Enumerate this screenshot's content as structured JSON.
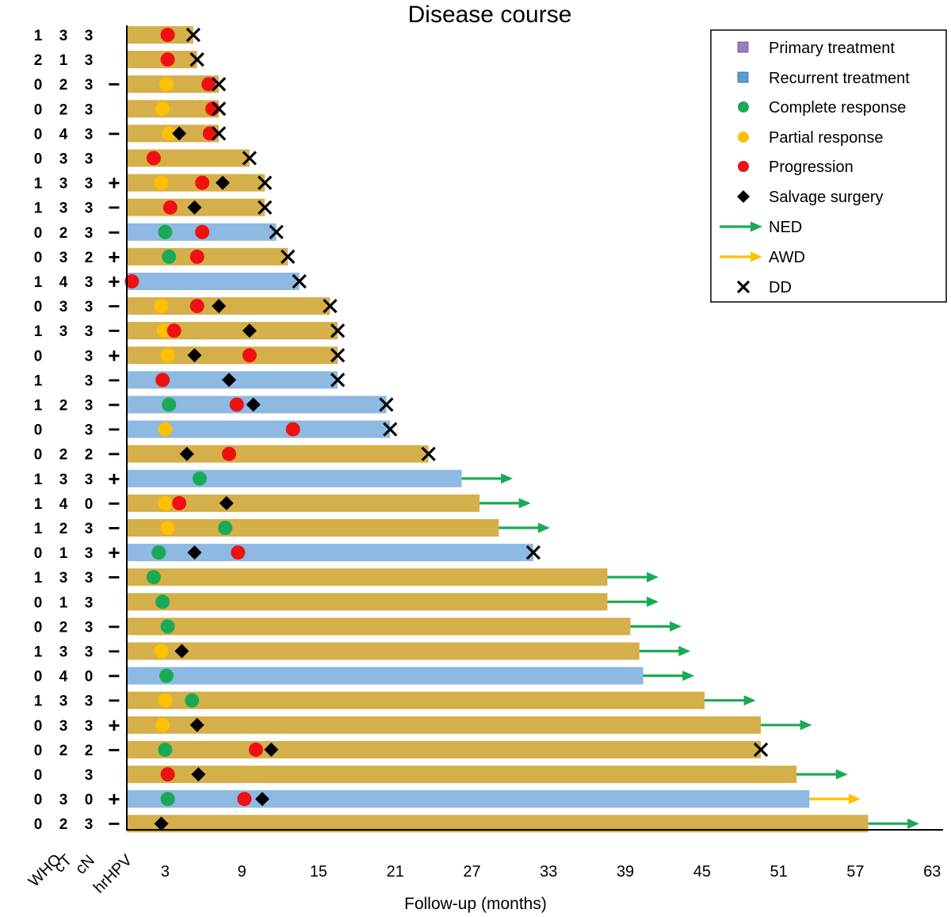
{
  "chart_data": {
    "type": "swimmer",
    "title": "Disease course",
    "xlabel": "Follow-up (months)",
    "xlim": [
      0,
      63
    ],
    "xticks": [
      3,
      9,
      15,
      21,
      27,
      33,
      39,
      45,
      51,
      57,
      63
    ],
    "column_headers": [
      "WHO",
      "cT",
      "cN",
      "hrHPV"
    ],
    "legend": {
      "primary": "Primary treatment",
      "recurrent": "Recurrent treatment",
      "cr": "Complete response",
      "pr": "Partial response",
      "prog": "Progression",
      "salvage": "Salvage surgery",
      "ned": "NED",
      "awd": "AWD",
      "dd": "DD"
    },
    "colors": {
      "primary_bar": "#d4af4a",
      "recurrent_bar": "#8db9e2",
      "legend_primary": "#9b7bc7",
      "legend_recurrent": "#5b9bd5",
      "cr": "#1aaa55",
      "pr": "#ffc000",
      "prog": "#ee1111",
      "salvage": "#000000",
      "ned": "#1aaa55",
      "awd": "#ffc000",
      "dd": "#000000"
    },
    "patients": [
      {
        "who": "1",
        "ct": "3",
        "cn": "3",
        "hpv": "",
        "tx": "primary",
        "end": 5.2,
        "events": [
          {
            "t": "prog",
            "m": 3.2
          }
        ],
        "outcome": "DD",
        "oend": 5.2
      },
      {
        "who": "2",
        "ct": "1",
        "cn": "3",
        "hpv": "",
        "tx": "primary",
        "end": 5.5,
        "events": [
          {
            "t": "prog",
            "m": 3.2
          }
        ],
        "outcome": "DD",
        "oend": 5.5
      },
      {
        "who": "0",
        "ct": "2",
        "cn": "3",
        "hpv": "−",
        "tx": "primary",
        "end": 7.2,
        "events": [
          {
            "t": "pr",
            "m": 3.1
          },
          {
            "t": "prog",
            "m": 6.4
          }
        ],
        "outcome": "DD",
        "oend": 7.2
      },
      {
        "who": "0",
        "ct": "2",
        "cn": "3",
        "hpv": "",
        "tx": "primary",
        "end": 7.2,
        "events": [
          {
            "t": "pr",
            "m": 2.8
          },
          {
            "t": "prog",
            "m": 6.7
          }
        ],
        "outcome": "DD",
        "oend": 7.2
      },
      {
        "who": "0",
        "ct": "4",
        "cn": "3",
        "hpv": "−",
        "tx": "primary",
        "end": 7.2,
        "events": [
          {
            "t": "pr",
            "m": 3.3
          },
          {
            "t": "salvage",
            "m": 4.1
          },
          {
            "t": "prog",
            "m": 6.5
          }
        ],
        "outcome": "DD",
        "oend": 7.2
      },
      {
        "who": "0",
        "ct": "3",
        "cn": "3",
        "hpv": "",
        "tx": "primary",
        "end": 9.6,
        "events": [
          {
            "t": "prog",
            "m": 2.1
          }
        ],
        "outcome": "DD",
        "oend": 9.6
      },
      {
        "who": "1",
        "ct": "3",
        "cn": "3",
        "hpv": "+",
        "tx": "primary",
        "end": 10.8,
        "events": [
          {
            "t": "pr",
            "m": 2.7
          },
          {
            "t": "prog",
            "m": 5.9
          },
          {
            "t": "salvage",
            "m": 7.5
          }
        ],
        "outcome": "DD",
        "oend": 10.8
      },
      {
        "who": "1",
        "ct": "3",
        "cn": "3",
        "hpv": "−",
        "tx": "primary",
        "end": 10.8,
        "events": [
          {
            "t": "prog",
            "m": 3.4
          },
          {
            "t": "salvage",
            "m": 5.3
          }
        ],
        "outcome": "DD",
        "oend": 10.8
      },
      {
        "who": "0",
        "ct": "2",
        "cn": "3",
        "hpv": "−",
        "tx": "recurrent",
        "end": 11.7,
        "events": [
          {
            "t": "cr",
            "m": 3.0
          },
          {
            "t": "prog",
            "m": 5.9
          }
        ],
        "outcome": "DD",
        "oend": 11.7
      },
      {
        "who": "0",
        "ct": "3",
        "cn": "2",
        "hpv": "+",
        "tx": "primary",
        "end": 12.6,
        "events": [
          {
            "t": "cr",
            "m": 3.3
          },
          {
            "t": "prog",
            "m": 5.5
          }
        ],
        "outcome": "DD",
        "oend": 12.6
      },
      {
        "who": "1",
        "ct": "4",
        "cn": "3",
        "hpv": "+",
        "tx": "recurrent",
        "end": 13.5,
        "events": [
          {
            "t": "prog",
            "m": 0.4
          }
        ],
        "outcome": "DD",
        "oend": 13.5
      },
      {
        "who": "0",
        "ct": "3",
        "cn": "3",
        "hpv": "−",
        "tx": "primary",
        "end": 15.9,
        "events": [
          {
            "t": "pr",
            "m": 2.7
          },
          {
            "t": "prog",
            "m": 5.5
          },
          {
            "t": "salvage",
            "m": 7.2
          }
        ],
        "outcome": "DD",
        "oend": 15.9
      },
      {
        "who": "1",
        "ct": "3",
        "cn": "3",
        "hpv": "−",
        "tx": "primary",
        "end": 16.5,
        "events": [
          {
            "t": "pr",
            "m": 2.9
          },
          {
            "t": "prog",
            "m": 3.7
          },
          {
            "t": "salvage",
            "m": 9.6
          }
        ],
        "outcome": "DD",
        "oend": 16.5
      },
      {
        "who": "0",
        "ct": "",
        "cn": "3",
        "hpv": "+",
        "tx": "primary",
        "end": 16.5,
        "events": [
          {
            "t": "pr",
            "m": 3.2
          },
          {
            "t": "salvage",
            "m": 5.3
          },
          {
            "t": "prog",
            "m": 9.6
          }
        ],
        "outcome": "DD",
        "oend": 16.5
      },
      {
        "who": "1",
        "ct": "",
        "cn": "3",
        "hpv": "−",
        "tx": "recurrent",
        "end": 16.5,
        "events": [
          {
            "t": "prog",
            "m": 2.8
          },
          {
            "t": "salvage",
            "m": 8.0
          }
        ],
        "outcome": "DD",
        "oend": 16.5
      },
      {
        "who": "1",
        "ct": "2",
        "cn": "3",
        "hpv": "−",
        "tx": "recurrent",
        "end": 20.3,
        "events": [
          {
            "t": "cr",
            "m": 3.3
          },
          {
            "t": "prog",
            "m": 8.6
          },
          {
            "t": "salvage",
            "m": 9.9
          }
        ],
        "outcome": "DD",
        "oend": 20.3
      },
      {
        "who": "0",
        "ct": "",
        "cn": "3",
        "hpv": "−",
        "tx": "recurrent",
        "end": 20.6,
        "events": [
          {
            "t": "pr",
            "m": 3.0
          },
          {
            "t": "prog",
            "m": 13.0
          }
        ],
        "outcome": "DD",
        "oend": 20.6
      },
      {
        "who": "0",
        "ct": "2",
        "cn": "2",
        "hpv": "−",
        "tx": "primary",
        "end": 23.6,
        "events": [
          {
            "t": "salvage",
            "m": 4.7
          },
          {
            "t": "prog",
            "m": 8.0
          }
        ],
        "outcome": "DD",
        "oend": 23.6
      },
      {
        "who": "1",
        "ct": "3",
        "cn": "3",
        "hpv": "+",
        "tx": "recurrent",
        "end": 26.2,
        "events": [
          {
            "t": "cr",
            "m": 5.7
          }
        ],
        "outcome": "NED",
        "oend": 30.2
      },
      {
        "who": "1",
        "ct": "4",
        "cn": "0",
        "hpv": "−",
        "tx": "primary",
        "end": 27.6,
        "events": [
          {
            "t": "pr",
            "m": 3.0
          },
          {
            "t": "prog",
            "m": 4.1
          },
          {
            "t": "salvage",
            "m": 7.8
          }
        ],
        "outcome": "NED",
        "oend": 31.6
      },
      {
        "who": "1",
        "ct": "2",
        "cn": "3",
        "hpv": "−",
        "tx": "primary",
        "end": 29.1,
        "events": [
          {
            "t": "pr",
            "m": 3.2
          },
          {
            "t": "cr",
            "m": 7.7
          }
        ],
        "outcome": "NED",
        "oend": 33.1
      },
      {
        "who": "0",
        "ct": "1",
        "cn": "3",
        "hpv": "+",
        "tx": "recurrent",
        "end": 31.8,
        "events": [
          {
            "t": "cr",
            "m": 2.5
          },
          {
            "t": "salvage",
            "m": 5.3
          },
          {
            "t": "prog",
            "m": 8.7
          }
        ],
        "outcome": "DD",
        "oend": 31.8
      },
      {
        "who": "1",
        "ct": "3",
        "cn": "3",
        "hpv": "−",
        "tx": "primary",
        "end": 37.6,
        "events": [
          {
            "t": "cr",
            "m": 2.1
          }
        ],
        "outcome": "NED",
        "oend": 41.6
      },
      {
        "who": "0",
        "ct": "1",
        "cn": "3",
        "hpv": "",
        "tx": "primary",
        "end": 37.6,
        "events": [
          {
            "t": "cr",
            "m": 2.8
          }
        ],
        "outcome": "NED",
        "oend": 41.6
      },
      {
        "who": "0",
        "ct": "2",
        "cn": "3",
        "hpv": "−",
        "tx": "primary",
        "end": 39.4,
        "events": [
          {
            "t": "cr",
            "m": 3.2
          }
        ],
        "outcome": "NED",
        "oend": 43.4
      },
      {
        "who": "1",
        "ct": "3",
        "cn": "3",
        "hpv": "−",
        "tx": "primary",
        "end": 40.1,
        "events": [
          {
            "t": "pr",
            "m": 2.7
          },
          {
            "t": "salvage",
            "m": 4.3
          }
        ],
        "outcome": "NED",
        "oend": 44.1
      },
      {
        "who": "0",
        "ct": "4",
        "cn": "0",
        "hpv": "−",
        "tx": "recurrent",
        "end": 40.4,
        "events": [
          {
            "t": "cr",
            "m": 3.1
          }
        ],
        "outcome": "NED",
        "oend": 44.4
      },
      {
        "who": "1",
        "ct": "3",
        "cn": "3",
        "hpv": "−",
        "tx": "primary",
        "end": 45.2,
        "events": [
          {
            "t": "pr",
            "m": 3.0
          },
          {
            "t": "cr",
            "m": 5.1
          }
        ],
        "outcome": "NED",
        "oend": 49.2
      },
      {
        "who": "0",
        "ct": "3",
        "cn": "3",
        "hpv": "+",
        "tx": "primary",
        "end": 49.6,
        "events": [
          {
            "t": "pr",
            "m": 2.8
          },
          {
            "t": "salvage",
            "m": 5.5
          }
        ],
        "outcome": "NED",
        "oend": 53.6
      },
      {
        "who": "0",
        "ct": "2",
        "cn": "2",
        "hpv": "−",
        "tx": "primary",
        "end": 49.6,
        "events": [
          {
            "t": "cr",
            "m": 3.0
          },
          {
            "t": "prog",
            "m": 10.1
          },
          {
            "t": "salvage",
            "m": 11.3
          }
        ],
        "outcome": "DD",
        "oend": 49.6
      },
      {
        "who": "0",
        "ct": "",
        "cn": "3",
        "hpv": "",
        "tx": "primary",
        "end": 52.4,
        "events": [
          {
            "t": "prog",
            "m": 3.2
          },
          {
            "t": "salvage",
            "m": 5.6
          }
        ],
        "outcome": "NED",
        "oend": 56.4
      },
      {
        "who": "0",
        "ct": "3",
        "cn": "0",
        "hpv": "+",
        "tx": "recurrent",
        "end": 53.4,
        "events": [
          {
            "t": "cr",
            "m": 3.2
          },
          {
            "t": "prog",
            "m": 9.2
          },
          {
            "t": "salvage",
            "m": 10.6
          }
        ],
        "outcome": "AWD",
        "oend": 57.4
      },
      {
        "who": "0",
        "ct": "2",
        "cn": "3",
        "hpv": "−",
        "tx": "primary",
        "end": 58.0,
        "events": [
          {
            "t": "salvage",
            "m": 2.7
          }
        ],
        "outcome": "NED",
        "oend": 62.0
      }
    ]
  }
}
